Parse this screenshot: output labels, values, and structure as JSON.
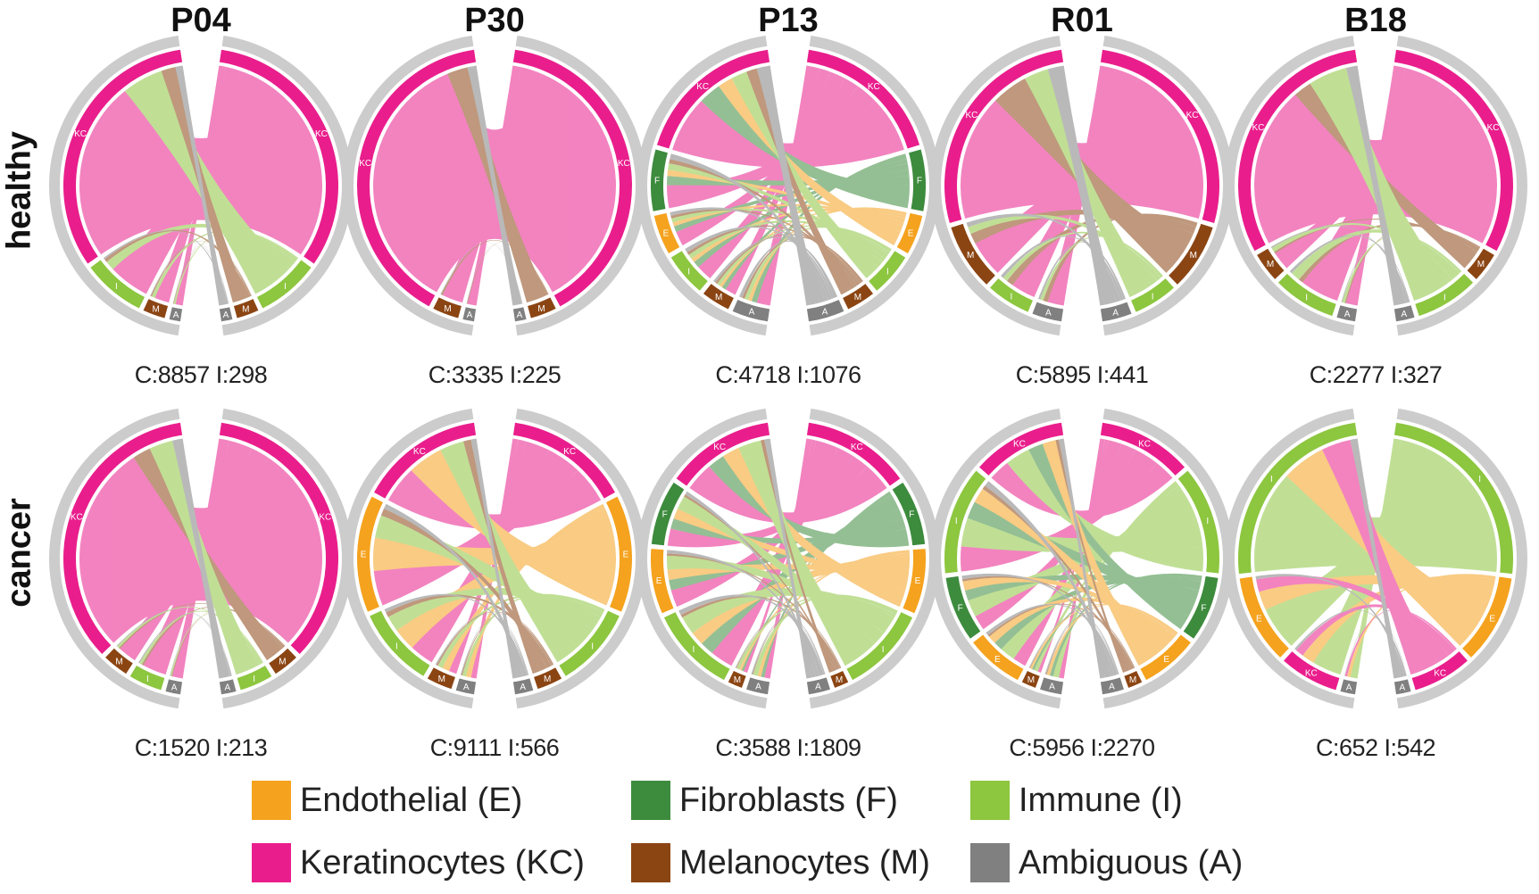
{
  "columns": [
    "P04",
    "P30",
    "P13",
    "R01",
    "B18"
  ],
  "rows": [
    "healthy",
    "cancer"
  ],
  "colors": {
    "E": "#f5a21e",
    "F": "#3d8b3d",
    "I": "#8dc63f",
    "KC": "#e91e8c",
    "M": "#8b4513",
    "A": "#808080",
    "ring": "#cccccc"
  },
  "legend": [
    {
      "code": "E",
      "label": "Endothelial (E)"
    },
    {
      "code": "F",
      "label": "Fibroblasts (F)"
    },
    {
      "code": "I",
      "label": "Immune (I)"
    },
    {
      "code": "KC",
      "label": "Keratinocytes (KC)"
    },
    {
      "code": "M",
      "label": "Melanocytes (M)"
    },
    {
      "code": "A",
      "label": "Ambiguous (A)"
    }
  ],
  "panels": [
    {
      "id": "P04-healthy",
      "col": 0,
      "row": 0,
      "counts": "C:8857 I:298",
      "segments": [
        {
          "code": "KC",
          "frac": 0.74
        },
        {
          "code": "I",
          "frac": 0.17
        },
        {
          "code": "M",
          "frac": 0.06
        },
        {
          "code": "A",
          "frac": 0.03
        }
      ]
    },
    {
      "id": "P30-healthy",
      "col": 1,
      "row": 0,
      "counts": "C:3335 I:225",
      "segments": [
        {
          "code": "KC",
          "frac": 0.9
        },
        {
          "code": "M",
          "frac": 0.07
        },
        {
          "code": "A",
          "frac": 0.03
        }
      ]
    },
    {
      "id": "P13-healthy",
      "col": 2,
      "row": 0,
      "counts": "C:4718 I:1076",
      "segments": [
        {
          "code": "KC",
          "frac": 0.42
        },
        {
          "code": "F",
          "frac": 0.17
        },
        {
          "code": "E",
          "frac": 0.11
        },
        {
          "code": "I",
          "frac": 0.12
        },
        {
          "code": "M",
          "frac": 0.08
        },
        {
          "code": "A",
          "frac": 0.1
        }
      ]
    },
    {
      "id": "R01-healthy",
      "col": 3,
      "row": 0,
      "counts": "C:5895 I:441",
      "segments": [
        {
          "code": "KC",
          "frac": 0.62
        },
        {
          "code": "M",
          "frac": 0.18
        },
        {
          "code": "I",
          "frac": 0.12
        },
        {
          "code": "A",
          "frac": 0.08
        }
      ]
    },
    {
      "id": "B18-healthy",
      "col": 4,
      "row": 0,
      "counts": "C:2277 I:327",
      "segments": [
        {
          "code": "KC",
          "frac": 0.7
        },
        {
          "code": "M",
          "frac": 0.08
        },
        {
          "code": "I",
          "frac": 0.17
        },
        {
          "code": "A",
          "frac": 0.05
        }
      ]
    },
    {
      "id": "P04-cancer",
      "col": 0,
      "row": 1,
      "counts": "C:1520 I:213",
      "segments": [
        {
          "code": "KC",
          "frac": 0.8
        },
        {
          "code": "M",
          "frac": 0.07
        },
        {
          "code": "I",
          "frac": 0.09
        },
        {
          "code": "A",
          "frac": 0.04
        }
      ]
    },
    {
      "id": "P30-cancer",
      "col": 1,
      "row": 1,
      "counts": "C:9111 I:566",
      "segments": [
        {
          "code": "KC",
          "frac": 0.34
        },
        {
          "code": "E",
          "frac": 0.32
        },
        {
          "code": "I",
          "frac": 0.22
        },
        {
          "code": "M",
          "frac": 0.07
        },
        {
          "code": "A",
          "frac": 0.05
        }
      ]
    },
    {
      "id": "P13-cancer",
      "col": 2,
      "row": 1,
      "counts": "C:3588 I:1809",
      "segments": [
        {
          "code": "KC",
          "frac": 0.3
        },
        {
          "code": "F",
          "frac": 0.18
        },
        {
          "code": "E",
          "frac": 0.18
        },
        {
          "code": "I",
          "frac": 0.24
        },
        {
          "code": "M",
          "frac": 0.04
        },
        {
          "code": "A",
          "frac": 0.06
        }
      ]
    },
    {
      "id": "R01-cancer",
      "col": 3,
      "row": 1,
      "counts": "C:5956 I:2270",
      "segments": [
        {
          "code": "KC",
          "frac": 0.26
        },
        {
          "code": "I",
          "frac": 0.3
        },
        {
          "code": "F",
          "frac": 0.18
        },
        {
          "code": "E",
          "frac": 0.16
        },
        {
          "code": "M",
          "frac": 0.04
        },
        {
          "code": "A",
          "frac": 0.06
        }
      ]
    },
    {
      "id": "B18-cancer",
      "col": 4,
      "row": 1,
      "counts": "C:652 I:542",
      "segments": [
        {
          "code": "I",
          "frac": 0.56
        },
        {
          "code": "E",
          "frac": 0.24
        },
        {
          "code": "KC",
          "frac": 0.16
        },
        {
          "code": "A",
          "frac": 0.04
        }
      ]
    }
  ]
}
